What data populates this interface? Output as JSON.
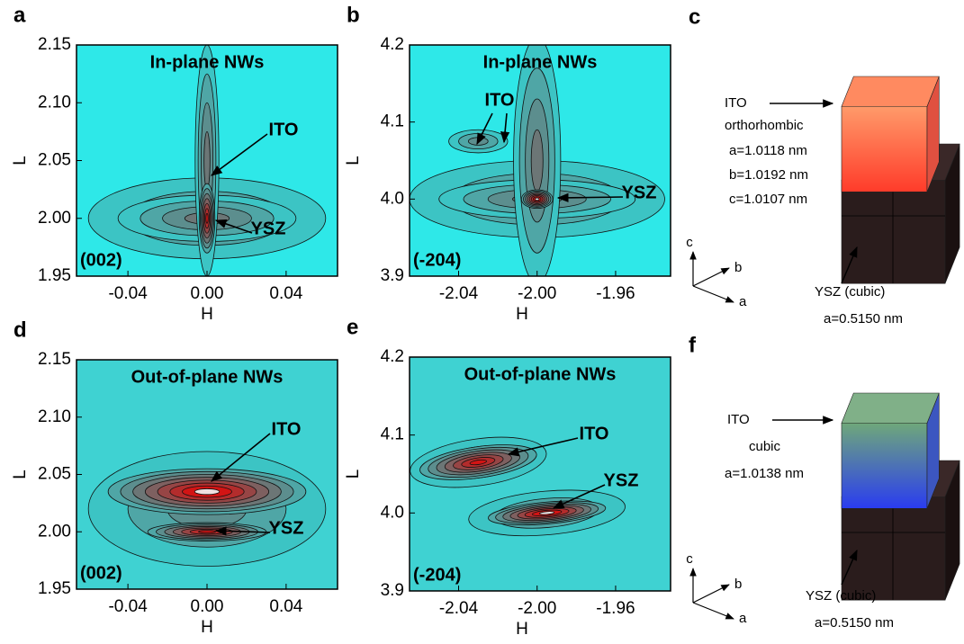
{
  "chart_data": [
    {
      "type": "contour",
      "panel": "a",
      "title": "In-plane NWs",
      "tag": "(002)",
      "xlabel": "H",
      "ylabel": "L",
      "xlim": [
        -0.066,
        0.066
      ],
      "ylim": [
        1.95,
        2.15
      ],
      "xticks": [
        -0.04,
        {
          "value": 0,
          "label": "0.00"
        },
        0.04
      ],
      "yticks": [
        1.95,
        {
          "value": 2,
          "label": "2.00"
        },
        2.05,
        {
          "value": 2.1,
          "label": "2.10"
        },
        2.15
      ],
      "annotations": [
        "ITO",
        "YSZ"
      ]
    },
    {
      "type": "contour",
      "panel": "b",
      "title": "In-plane NWs",
      "tag": "(-204)",
      "xlabel": "H",
      "ylabel": "L",
      "xlim": [
        -2.065,
        -1.932
      ],
      "ylim": [
        3.9,
        4.2
      ],
      "xticks": [
        -2.04,
        {
          "value": -2,
          "label": "-2.00"
        },
        -1.96
      ],
      "yticks": [
        3.9,
        {
          "value": 4,
          "label": "4.0"
        },
        4.1,
        4.2
      ],
      "annotations": [
        "ITO",
        "YSZ"
      ]
    },
    {
      "type": "contour",
      "panel": "d",
      "title": "Out-of-plane NWs",
      "tag": "(002)",
      "xlabel": "H",
      "ylabel": "L",
      "xlim": [
        -0.066,
        0.066
      ],
      "ylim": [
        1.95,
        2.15
      ],
      "xticks": [
        -0.04,
        {
          "value": 0,
          "label": "0.00"
        },
        0.04
      ],
      "yticks": [
        1.95,
        {
          "value": 2,
          "label": "2.00"
        },
        2.05,
        {
          "value": 2.1,
          "label": "2.10"
        },
        2.15
      ],
      "annotations": [
        "ITO",
        "YSZ"
      ]
    },
    {
      "type": "contour",
      "panel": "e",
      "title": "Out-of-plane NWs",
      "tag": "(-204)",
      "xlabel": "H",
      "ylabel": "L",
      "xlim": [
        -2.065,
        -1.932
      ],
      "ylim": [
        3.9,
        4.2
      ],
      "xticks": [
        -2.04,
        {
          "value": -2,
          "label": "-2.00"
        },
        -1.96
      ],
      "yticks": [
        3.9,
        {
          "value": 4,
          "label": "4.0"
        },
        4.1,
        4.2
      ],
      "annotations": [
        "ITO",
        "YSZ"
      ]
    }
  ],
  "diagrams": [
    {
      "panel": "c",
      "ito": [
        "ITO",
        "orthorhombic",
        "a=1.0118 nm",
        "b=1.0192 nm",
        "c=1.0107 nm"
      ],
      "ysz": [
        "YSZ  (cubic)",
        "a=0.5150  nm"
      ],
      "axes": [
        "c",
        "b",
        "a"
      ]
    },
    {
      "panel": "f",
      "ito": [
        "ITO",
        "cubic",
        "a=1.0138 nm"
      ],
      "ysz": [
        "YSZ  (cubic)",
        "a=0.5150  nm"
      ],
      "axes": [
        "c",
        "b",
        "a"
      ]
    }
  ]
}
